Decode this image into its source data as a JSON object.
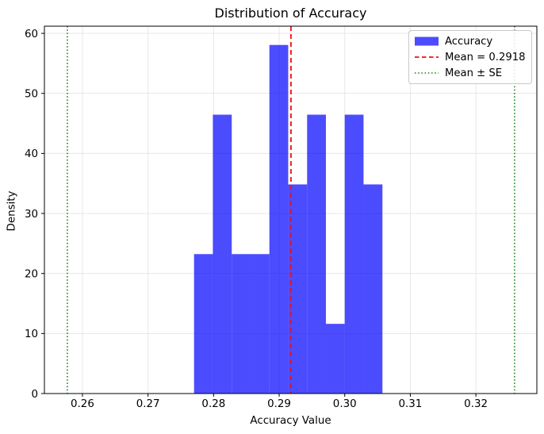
{
  "chart_data": {
    "type": "bar",
    "subtype": "histogram",
    "title": "Distribution of Accuracy",
    "xlabel": "Accuracy Value",
    "ylabel": "Density",
    "xlim": [
      0.2542,
      0.3293
    ],
    "ylim": [
      0,
      61.2
    ],
    "xtick_values": [
      0.26,
      0.27,
      0.28,
      0.29,
      0.3,
      0.31,
      0.32
    ],
    "xtick_labels": [
      "0.26",
      "0.27",
      "0.28",
      "0.29",
      "0.30",
      "0.31",
      "0.32"
    ],
    "ytick_values": [
      0,
      10,
      20,
      30,
      40,
      50,
      60
    ],
    "ytick_labels": [
      "0",
      "10",
      "20",
      "30",
      "40",
      "50",
      "60"
    ],
    "grid": true,
    "legend_position": "upper right",
    "series": [
      {
        "name": "Accuracy",
        "n_bins": 10,
        "bin_edges": [
          0.27702,
          0.27989,
          0.28277,
          0.28564,
          0.28851,
          0.29138,
          0.29426,
          0.29713,
          0.3,
          0.30287,
          0.30575
        ],
        "densities": [
          23.23,
          46.46,
          23.23,
          23.23,
          58.07,
          34.84,
          46.46,
          11.61,
          46.46,
          34.84
        ],
        "color": "rgba(0,0,255,0.7)"
      }
    ],
    "mean_line": {
      "value": 0.2918,
      "color": "#ee1111",
      "style": "dashed"
    },
    "se_lines": {
      "lower": 0.2577,
      "upper": 0.3259,
      "color": "#108010",
      "style": "dotted"
    },
    "colors": {
      "bars": "rgba(0,0,255,0.7)",
      "mean": "#ee1111",
      "se": "#108010",
      "grid": "#e4e4e4",
      "spine": "#000000"
    },
    "legend": {
      "items": [
        {
          "label": "Accuracy",
          "swatch": "patch",
          "color": "rgba(0,0,255,0.7)"
        },
        {
          "label": "Mean = 0.2918",
          "swatch": "dashed-line",
          "color": "#ee1111"
        },
        {
          "label": "Mean ± SE",
          "swatch": "dotted-line",
          "color": "#108010"
        }
      ]
    }
  }
}
